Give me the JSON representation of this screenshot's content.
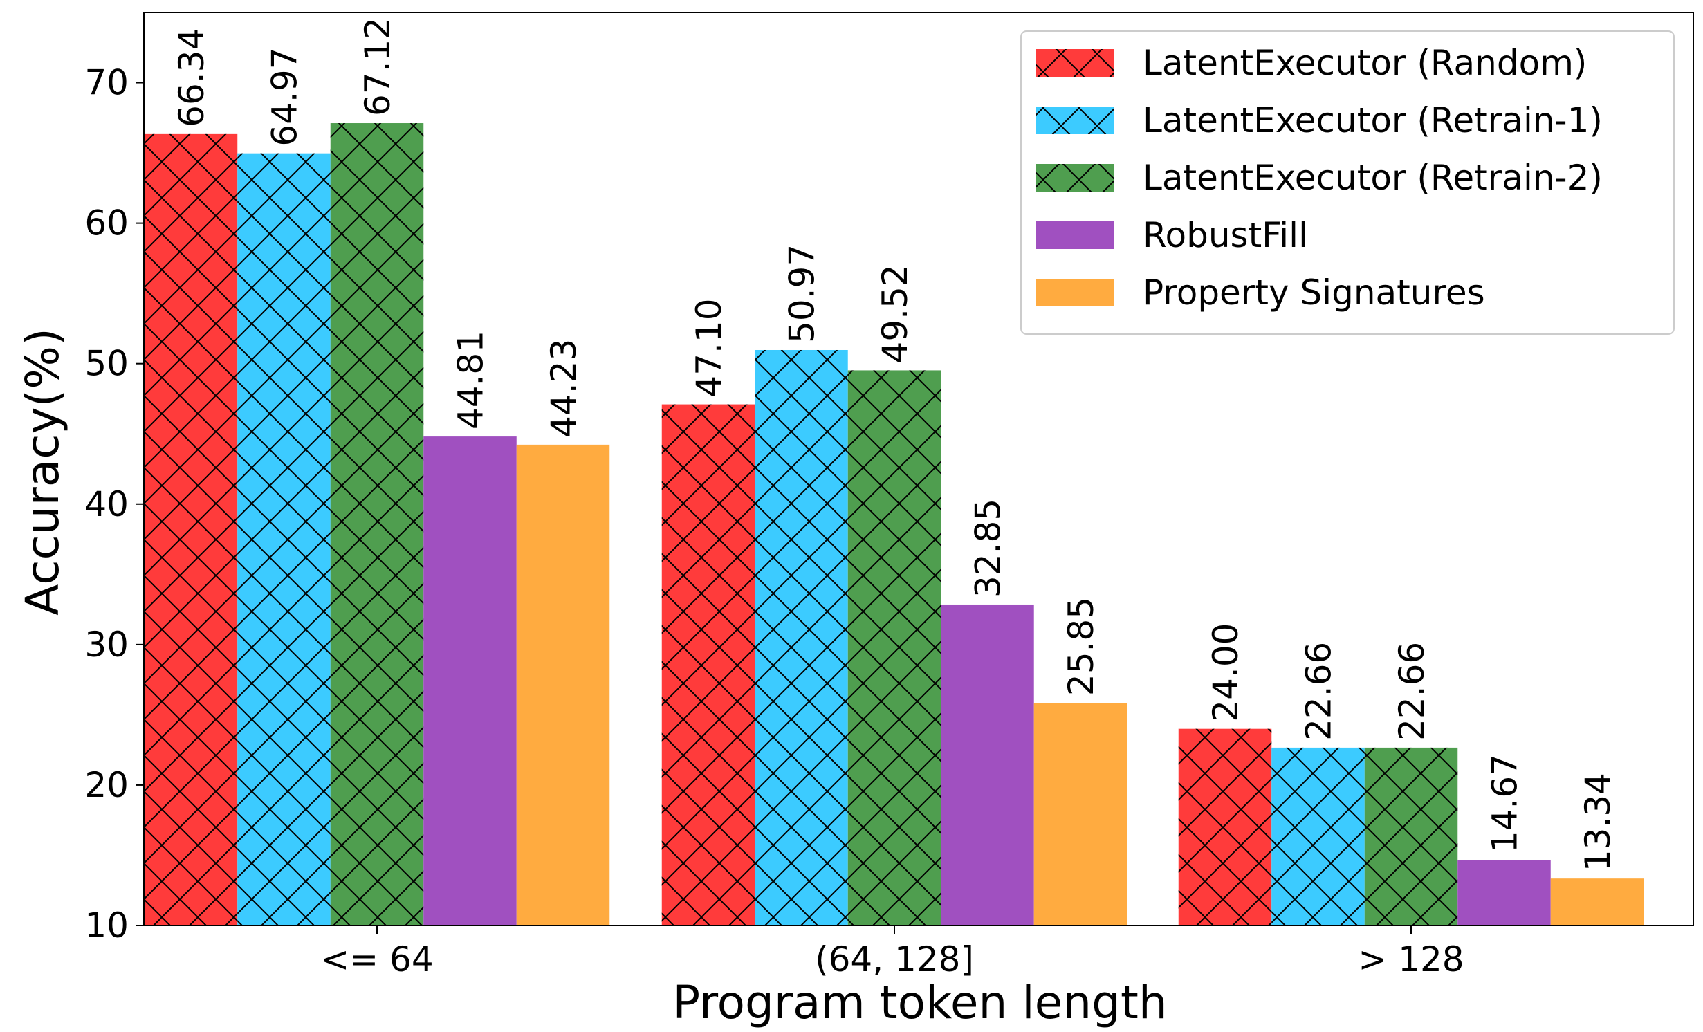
{
  "chart_data": {
    "type": "bar",
    "title": "",
    "xlabel": "Program token length",
    "ylabel": "Accuracy(%)",
    "categories": [
      "<= 64",
      "(64, 128]",
      "> 128"
    ],
    "ylim": [
      10,
      75
    ],
    "yticks": [
      10,
      20,
      30,
      40,
      50,
      60,
      70
    ],
    "grid": false,
    "legend_position": "top-right",
    "series": [
      {
        "name": "LatentExecutor (Random)",
        "color": "#ff3b3b",
        "hatch": "x",
        "values": [
          66.34,
          47.1,
          24.0
        ],
        "labels": [
          "66.34",
          "47.10",
          "24.00"
        ]
      },
      {
        "name": "LatentExecutor (Retrain-1)",
        "color": "#3ccbff",
        "hatch": "x",
        "values": [
          64.97,
          50.97,
          22.66
        ],
        "labels": [
          "64.97",
          "50.97",
          "22.66"
        ]
      },
      {
        "name": "LatentExecutor (Retrain-2)",
        "color": "#4f9e4f",
        "hatch": "x",
        "values": [
          67.12,
          49.52,
          22.66
        ],
        "labels": [
          "67.12",
          "49.52",
          "22.66"
        ]
      },
      {
        "name": "RobustFill",
        "color": "#a050c0",
        "hatch": "none",
        "values": [
          44.81,
          32.85,
          14.67
        ],
        "labels": [
          "44.81",
          "32.85",
          "14.67"
        ]
      },
      {
        "name": "Property Signatures",
        "color": "#ffab40",
        "hatch": "none",
        "values": [
          44.23,
          25.85,
          13.34
        ],
        "labels": [
          "44.23",
          "25.85",
          "13.34"
        ]
      }
    ]
  }
}
